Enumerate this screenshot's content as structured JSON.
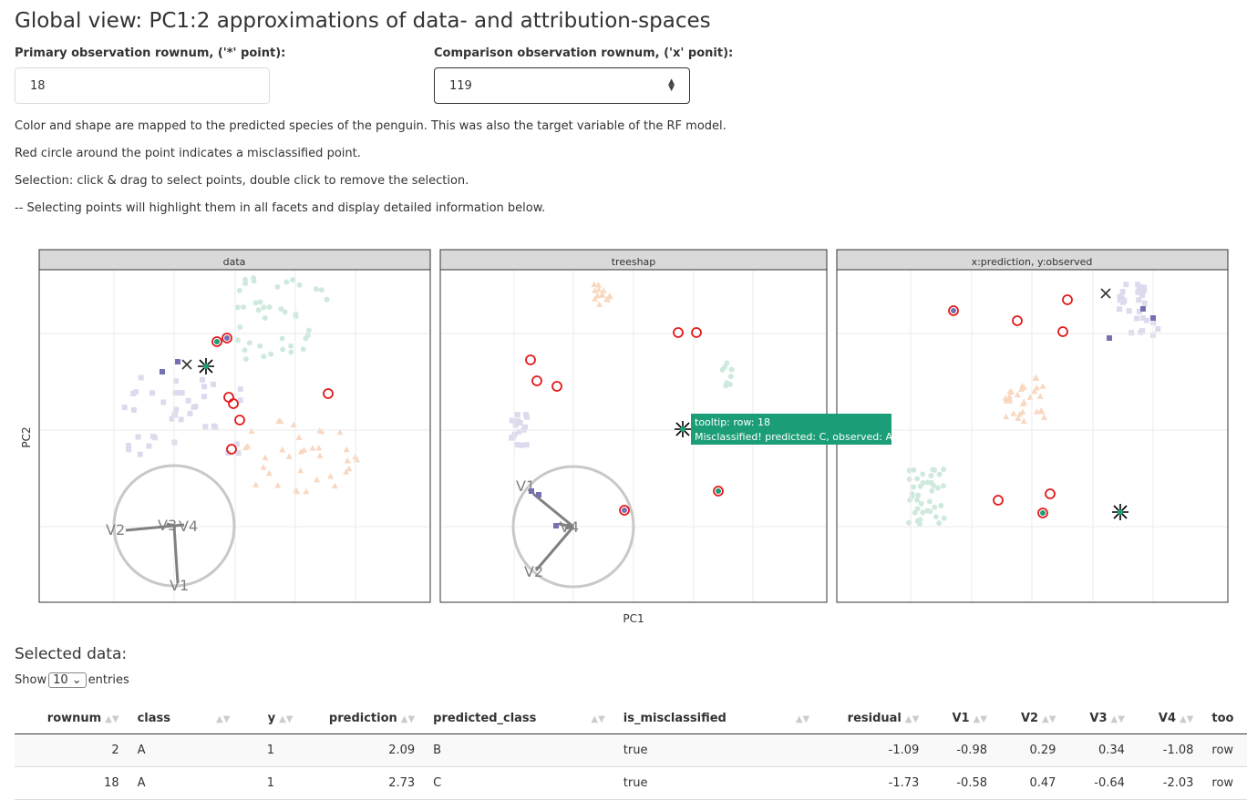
{
  "title": "Global view: PC1:2 approximations of data- and attribution-spaces",
  "primary": {
    "label": "Primary observation rownum, ('*' point):",
    "value": "18"
  },
  "comparison": {
    "label": "Comparison observation rownum, ('x' ponit):",
    "value": "119"
  },
  "notes": [
    "Color and shape are mapped to the predicted species of the penguin. This was also the target variable of the RF model.",
    "Red circle around the point indicates a misclassified point.",
    "Selection: click & drag to select points, double click to remove the selection.",
    "-- Selecting points will highlight them in all facets and display detailed information below."
  ],
  "plot": {
    "facets": [
      "data",
      "treeshap",
      "x:prediction, y:observed"
    ],
    "xlabel": "PC1",
    "ylabel": "PC2",
    "axis_labels": [
      "V1",
      "V2",
      "V3",
      "V4"
    ],
    "tooltip": [
      "tooltip: row: 18",
      "Misclassified! predicted: C, observed: A"
    ],
    "colors": {
      "A": "#7570b3",
      "B": "#f5b990",
      "C": "#1b9e77",
      "misclassified": "#e31a1c",
      "tooltip_bg": "#1b9e77",
      "strip_bg": "#d9d9d9"
    }
  },
  "selected_title": "Selected data:",
  "show": {
    "before": "Show",
    "value": "10",
    "after": "entries"
  },
  "table": {
    "columns": [
      "rownum",
      "class",
      "y",
      "prediction",
      "predicted_class",
      "is_misclassified",
      "residual",
      "V1",
      "V2",
      "V3",
      "V4",
      "too"
    ],
    "rows": [
      [
        "2",
        "A",
        "1",
        "2.09",
        "B",
        "true",
        "-1.09",
        "-0.98",
        "0.29",
        "0.34",
        "-1.08",
        "row"
      ],
      [
        "18",
        "A",
        "1",
        "2.73",
        "C",
        "true",
        "-1.73",
        "-0.58",
        "0.47",
        "-0.64",
        "-2.03",
        "row"
      ]
    ]
  }
}
